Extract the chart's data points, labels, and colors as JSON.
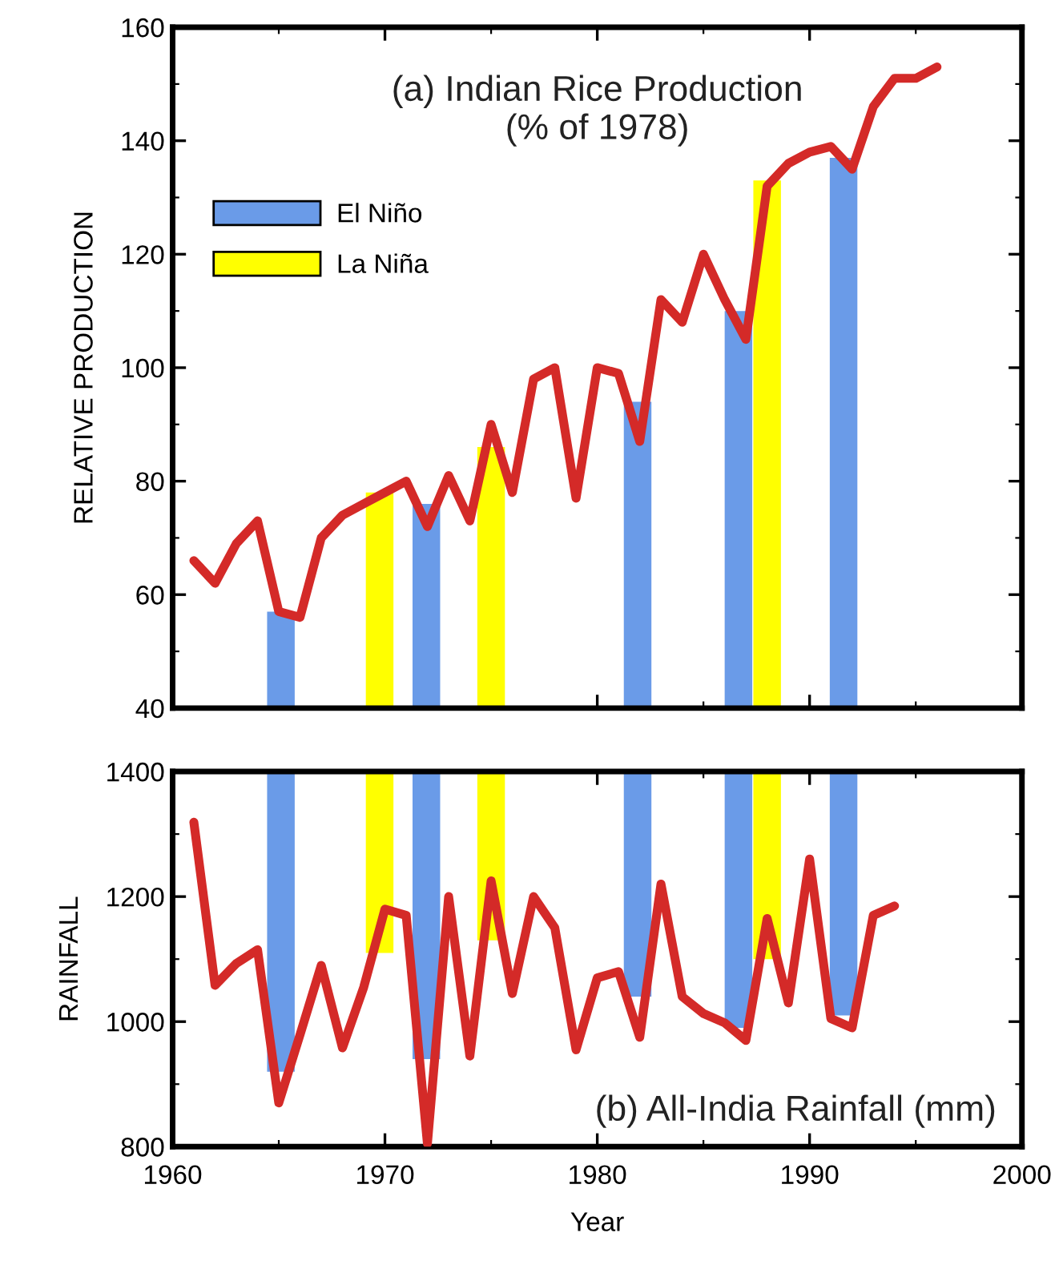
{
  "chart_data": [
    {
      "type": "line",
      "title": "(a) Indian Rice Production\n(% of 1978)",
      "ylabel": "RELATIVE PRODUCTION",
      "x": [
        1961,
        1962,
        1963,
        1964,
        1965,
        1966,
        1967,
        1968,
        1969,
        1970,
        1971,
        1972,
        1973,
        1974,
        1975,
        1976,
        1977,
        1978,
        1979,
        1980,
        1981,
        1982,
        1983,
        1984,
        1985,
        1986,
        1987,
        1988,
        1989,
        1990,
        1991,
        1992,
        1993,
        1994,
        1995,
        1996
      ],
      "series": [
        {
          "type": "bar",
          "name": "El Niño",
          "color": "#6a9be8",
          "x": [
            1965.1,
            1971.95,
            1981.9,
            1986.65,
            1991.6
          ],
          "values": [
            57,
            76,
            94,
            110,
            137
          ]
        },
        {
          "type": "bar",
          "name": "La Niña",
          "color": "#ffff00",
          "x": [
            1969.75,
            1975.0,
            1988.0
          ],
          "values": [
            78,
            86,
            133
          ]
        },
        {
          "color": "#d42a28",
          "values": [
            66,
            62,
            69,
            73,
            57,
            56,
            70,
            74,
            76,
            78,
            80,
            72,
            81,
            73,
            90,
            78,
            98,
            100,
            77,
            100,
            99,
            87,
            112,
            108,
            120,
            112,
            105,
            132,
            136,
            138,
            139,
            135,
            146,
            151,
            151,
            153
          ]
        }
      ],
      "xlim": [
        1960,
        2000
      ],
      "xticks": [
        1960,
        1970,
        1980,
        1990,
        2000
      ],
      "ylim": [
        40,
        160
      ],
      "yticks": [
        40,
        60,
        80,
        100,
        120,
        140,
        160
      ],
      "tick_labels": "y",
      "legend": "top left"
    },
    {
      "type": "line",
      "title": "(b) All-India Rainfall (mm)",
      "ylabel": "RAINFALL",
      "xlabel": "Year",
      "x": [
        1961,
        1962,
        1963,
        1964,
        1965,
        1966,
        1967,
        1968,
        1969,
        1970,
        1971,
        1972,
        1973,
        1974,
        1975,
        1976,
        1977,
        1978,
        1979,
        1980,
        1981,
        1982,
        1983,
        1984,
        1985,
        1986,
        1987,
        1988,
        1989,
        1990,
        1991,
        1992,
        1993,
        1994
      ],
      "series": [
        {
          "type": "bar",
          "color": "#6a9be8",
          "x": [
            1965.1,
            1971.95,
            1981.9,
            1986.65,
            1991.6
          ],
          "base": [
            1400,
            1400,
            1400,
            1400,
            1400
          ],
          "values": [
            -480,
            -460,
            -360,
            -410,
            -390
          ]
        },
        {
          "type": "bar",
          "color": "#ffff00",
          "x": [
            1969.75,
            1975.0,
            1988.0
          ],
          "base": [
            1400,
            1400,
            1400
          ],
          "values": [
            -290,
            -270,
            -300
          ]
        },
        {
          "color": "#d42a28",
          "values": [
            1319,
            1058,
            1093,
            1115,
            870,
            979,
            1090,
            958,
            1055,
            1180,
            1170,
            805,
            1200,
            945,
            1225,
            1045,
            1200,
            1150,
            955,
            1070,
            1080,
            975,
            1220,
            1040,
            1013,
            998,
            970,
            1165,
            1030,
            1260,
            1005,
            990,
            1170,
            1185
          ]
        }
      ],
      "xlim": [
        1960,
        2000
      ],
      "xticks": [
        1960,
        1970,
        1980,
        1990,
        2000
      ],
      "ylim": [
        800,
        1400
      ],
      "yticks": [
        800,
        1000,
        1200,
        1400
      ]
    }
  ]
}
